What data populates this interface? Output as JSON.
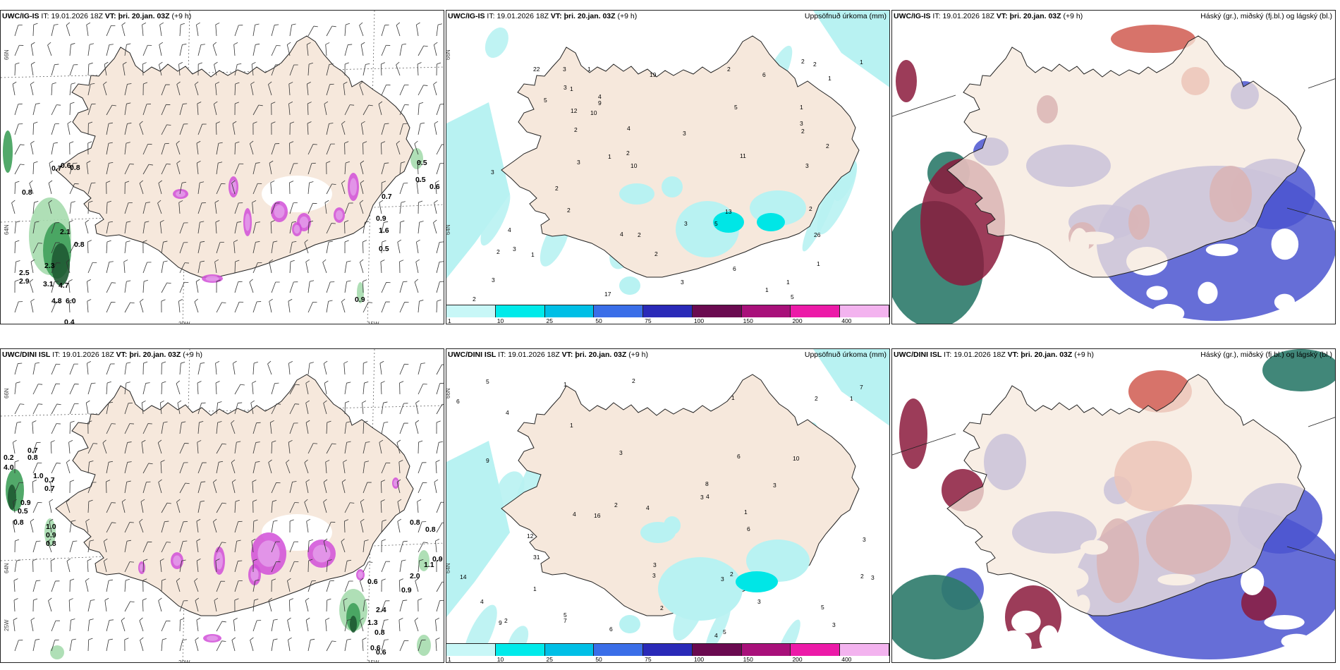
{
  "colors": {
    "land": "#f6e8dc",
    "coast": "#222222",
    "precip_light_cyan": "#b8f2f2",
    "precip_cyan": "#00e6e6",
    "green_dark": "#1e5a32",
    "green_mid": "#3fa05a",
    "green_light": "#a6dcae",
    "magenta": "#d14fd8",
    "purple_light": "#e7a8ee",
    "cloud_blue": "#4b55d0",
    "cloud_maroon": "#8b1a3c",
    "cloud_red": "#d05a50",
    "cloud_teal": "#2c7a6a"
  },
  "panels": {
    "wind_top": {
      "model": "UWC/IG-IS",
      "it_label": "IT:",
      "it_value": "19.01.2026 18Z",
      "vt_label": "VT:",
      "vt_value": "þri. 20.jan. 03Z",
      "lead": "(+9 h)",
      "labels": [
        "0.7",
        "0.6",
        "0.8",
        "0.8",
        "0.5",
        "0.5",
        "0.6",
        "2.1",
        "0.8",
        "2.3",
        "2.5",
        "2.9",
        "3.1",
        "4.7",
        "4.8",
        "6.0",
        "0.4",
        "0.7",
        "0.9",
        "1.6",
        "0.5",
        "0.9"
      ],
      "coords": [
        "66N",
        "64N",
        "20W",
        "15W"
      ]
    },
    "precip_top": {
      "model": "UWC/IG-IS",
      "it_label": "IT:",
      "it_value": "19.01.2026 18Z",
      "vt_label": "VT:",
      "vt_value": "þri. 20.jan. 03Z",
      "lead": "(+9 h)",
      "title": "Uppsöfnuð úrkoma (mm)",
      "amounts": [
        "2",
        "1",
        "1",
        "2",
        "1",
        "3",
        "2",
        "5",
        "6",
        "4",
        "3",
        "5",
        "3",
        "4",
        "2",
        "2",
        "11",
        "13",
        "10",
        "6",
        "2",
        "3",
        "1",
        "3",
        "1",
        "2",
        "3",
        "2",
        "3",
        "2",
        "4",
        "3",
        "1",
        "2",
        "22",
        "17",
        "19",
        "26",
        "12",
        "9",
        "5",
        "4",
        "5",
        "3",
        "3",
        "2",
        "1",
        "2",
        "3",
        "1",
        "10",
        "2",
        "1",
        "1",
        "2"
      ],
      "coords": [
        "66N",
        "64N"
      ]
    },
    "cloud_top": {
      "model": "UWC/IG-IS",
      "it_label": "IT:",
      "it_value": "19.01.2026 18Z",
      "vt_label": "VT:",
      "vt_value": "þri. 20.jan. 03Z",
      "lead": "(+9 h)",
      "title": "Háský (gr.), miðský (fj.bl.) og lágský (bl.)"
    },
    "wind_bottom": {
      "model": "UWC/DINI ISL",
      "it_label": "IT:",
      "it_value": "19.01.2026 18Z",
      "vt_label": "VT:",
      "vt_value": "þri. 20.jan. 03Z",
      "lead": "(+9 h)",
      "labels": [
        "0.2",
        "4.0",
        "0.7",
        "0.8",
        "1.0",
        "0.7",
        "0.7",
        "0.9",
        "0.5",
        "0.8",
        "1.0",
        "0.9",
        "0.8",
        "0.8",
        "0.8",
        "0.9",
        "1.1",
        "2.0",
        "0.6",
        "0.9",
        "2.4",
        "1.3",
        "0.8",
        "0.6",
        "0.6"
      ],
      "coords": [
        "66N",
        "64N",
        "25W",
        "20W",
        "15W"
      ]
    },
    "precip_bottom": {
      "model": "UWC/DINI ISL",
      "it_label": "IT:",
      "it_value": "19.01.2026 18Z",
      "vt_label": "VT:",
      "vt_value": "þri. 20.jan. 03Z",
      "lead": "(+9 h)",
      "title": "Uppsöfnuð úrkoma (mm)",
      "amounts": [
        "6",
        "4",
        "5",
        "3",
        "1",
        "4",
        "4",
        "3",
        "2",
        "3",
        "2",
        "2",
        "2",
        "3",
        "1",
        "3",
        "9",
        "7",
        "16",
        "6",
        "3",
        "7",
        "8",
        "9",
        "10",
        "12",
        "14",
        "31",
        "5",
        "6",
        "4",
        "5",
        "3",
        "1",
        "1",
        "1",
        "2",
        "4",
        "6",
        "5",
        "4",
        "3",
        "3",
        "2",
        "1",
        "2",
        "3"
      ],
      "coords": [
        "66N",
        "64N"
      ]
    },
    "cloud_bottom": {
      "model": "UWC/DINI ISL",
      "it_label": "IT:",
      "it_value": "19.01.2026 18Z",
      "vt_label": "VT:",
      "vt_value": "þri. 20.jan. 03Z",
      "lead": "(+9 h)",
      "title": "Háský (gr.), miðský (fj.bl.) og lágský (bl.)"
    }
  },
  "legend": {
    "colors": [
      "#c8f7f7",
      "#00eaea",
      "#00bfe6",
      "#3a6ee8",
      "#2a2ab8",
      "#6a0a50",
      "#a8107a",
      "#ec1aa8",
      "#f3b3ef"
    ],
    "ticks": [
      "1",
      "10",
      "25",
      "50",
      "75",
      "100",
      "150",
      "200",
      "400"
    ]
  }
}
